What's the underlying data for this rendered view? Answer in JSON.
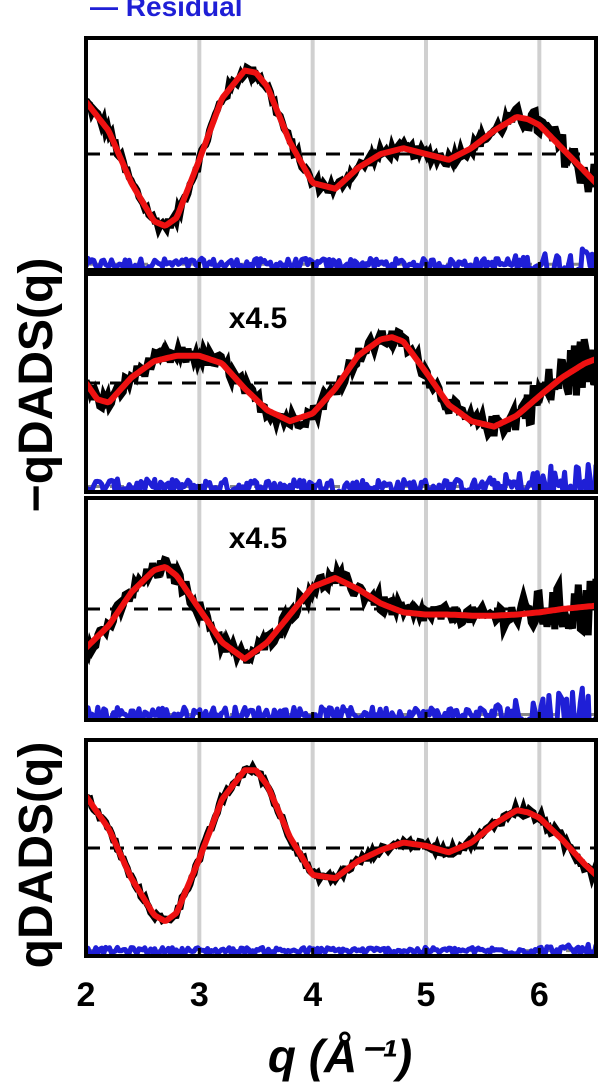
{
  "chart_data": {
    "type": "line",
    "legend": {
      "visible_entry": "— Residual",
      "placement": "top-left (clipped)"
    },
    "xlabel": "q (Å⁻¹)",
    "xlim": [
      2,
      6.5
    ],
    "x_ticks": [
      "2",
      "3",
      "4",
      "5",
      "6"
    ],
    "ylabel_group_top": "−qDADS(q)",
    "ylabel_group_bottom": "qDADS(q)",
    "vertical_grid_at": [
      3,
      4,
      5,
      6
    ],
    "grid_color": "#d0d0d0",
    "colors": {
      "data": "#000000",
      "fit": "#ee1111",
      "residual": "#1f1fd6",
      "zero_line": "#000000",
      "residual_zero_line": "#888888"
    },
    "panels": [
      {
        "annotation": "",
        "ylim": [
          -1,
          1
        ],
        "fit": {
          "x": [
            2.0,
            2.2,
            2.4,
            2.6,
            2.7,
            2.8,
            3.0,
            3.2,
            3.4,
            3.5,
            3.6,
            3.8,
            4.0,
            4.2,
            4.4,
            4.6,
            4.8,
            5.0,
            5.2,
            5.4,
            5.6,
            5.8,
            5.9,
            6.0,
            6.2,
            6.4,
            6.5
          ],
          "y": [
            0.45,
            0.2,
            -0.25,
            -0.58,
            -0.62,
            -0.55,
            -0.05,
            0.48,
            0.72,
            0.7,
            0.58,
            0.1,
            -0.25,
            -0.3,
            -0.12,
            0.0,
            0.05,
            0.0,
            -0.05,
            0.05,
            0.2,
            0.32,
            0.3,
            0.25,
            0.05,
            -0.15,
            -0.25
          ]
        },
        "data_noise": 0.05,
        "data_noise_high_q": 0.18,
        "residual_offset": -0.95,
        "residual_noise": 0.05,
        "residual_noise_high_q": 0.15
      },
      {
        "annotation": "x4.5",
        "ylim": [
          -1,
          1
        ],
        "fit": {
          "x": [
            2.0,
            2.1,
            2.2,
            2.4,
            2.6,
            2.8,
            3.0,
            3.2,
            3.4,
            3.6,
            3.8,
            4.0,
            4.2,
            4.4,
            4.6,
            4.7,
            4.8,
            5.0,
            5.2,
            5.4,
            5.6,
            5.8,
            6.0,
            6.2,
            6.4,
            6.5
          ],
          "y": [
            0.0,
            -0.15,
            -0.18,
            0.05,
            0.2,
            0.25,
            0.25,
            0.18,
            -0.05,
            -0.25,
            -0.35,
            -0.28,
            -0.05,
            0.25,
            0.4,
            0.42,
            0.38,
            0.1,
            -0.2,
            -0.35,
            -0.4,
            -0.3,
            -0.12,
            0.05,
            0.18,
            0.22
          ]
        },
        "data_noise": 0.08,
        "data_noise_high_q": 0.3,
        "residual_offset": -0.95,
        "residual_noise": 0.07,
        "residual_noise_high_q": 0.3
      },
      {
        "annotation": "x4.5",
        "ylim": [
          -1,
          1
        ],
        "fit": {
          "x": [
            2.0,
            2.2,
            2.4,
            2.6,
            2.7,
            2.8,
            3.0,
            3.2,
            3.4,
            3.6,
            3.8,
            4.0,
            4.2,
            4.4,
            4.6,
            4.8,
            5.0,
            5.2,
            5.4,
            5.6,
            5.8,
            6.0,
            6.2,
            6.4,
            6.5
          ],
          "y": [
            -0.35,
            -0.15,
            0.15,
            0.35,
            0.38,
            0.3,
            0.0,
            -0.3,
            -0.45,
            -0.3,
            -0.05,
            0.2,
            0.28,
            0.18,
            0.05,
            -0.03,
            -0.05,
            -0.05,
            -0.06,
            -0.06,
            -0.05,
            -0.03,
            0.0,
            0.02,
            0.03
          ]
        },
        "data_noise": 0.08,
        "data_noise_high_q": 0.3,
        "residual_offset": -0.95,
        "residual_noise": 0.07,
        "residual_noise_high_q": 0.35
      },
      {
        "annotation": "",
        "ylim": [
          -1,
          1
        ],
        "fit": {
          "x": [
            2.0,
            2.2,
            2.4,
            2.6,
            2.7,
            2.8,
            3.0,
            3.2,
            3.4,
            3.5,
            3.6,
            3.8,
            4.0,
            4.2,
            4.4,
            4.6,
            4.8,
            5.0,
            5.2,
            5.4,
            5.6,
            5.8,
            5.9,
            6.0,
            6.2,
            6.4,
            6.5
          ],
          "y": [
            0.48,
            0.18,
            -0.28,
            -0.62,
            -0.68,
            -0.6,
            -0.1,
            0.45,
            0.72,
            0.72,
            0.58,
            0.1,
            -0.25,
            -0.28,
            -0.12,
            -0.02,
            0.05,
            0.02,
            -0.04,
            0.05,
            0.22,
            0.35,
            0.33,
            0.28,
            0.08,
            -0.15,
            -0.25
          ]
        },
        "data_noise": 0.03,
        "data_noise_high_q": 0.06,
        "residual_offset": -0.95,
        "residual_noise": 0.03,
        "residual_noise_high_q": 0.06
      }
    ]
  }
}
